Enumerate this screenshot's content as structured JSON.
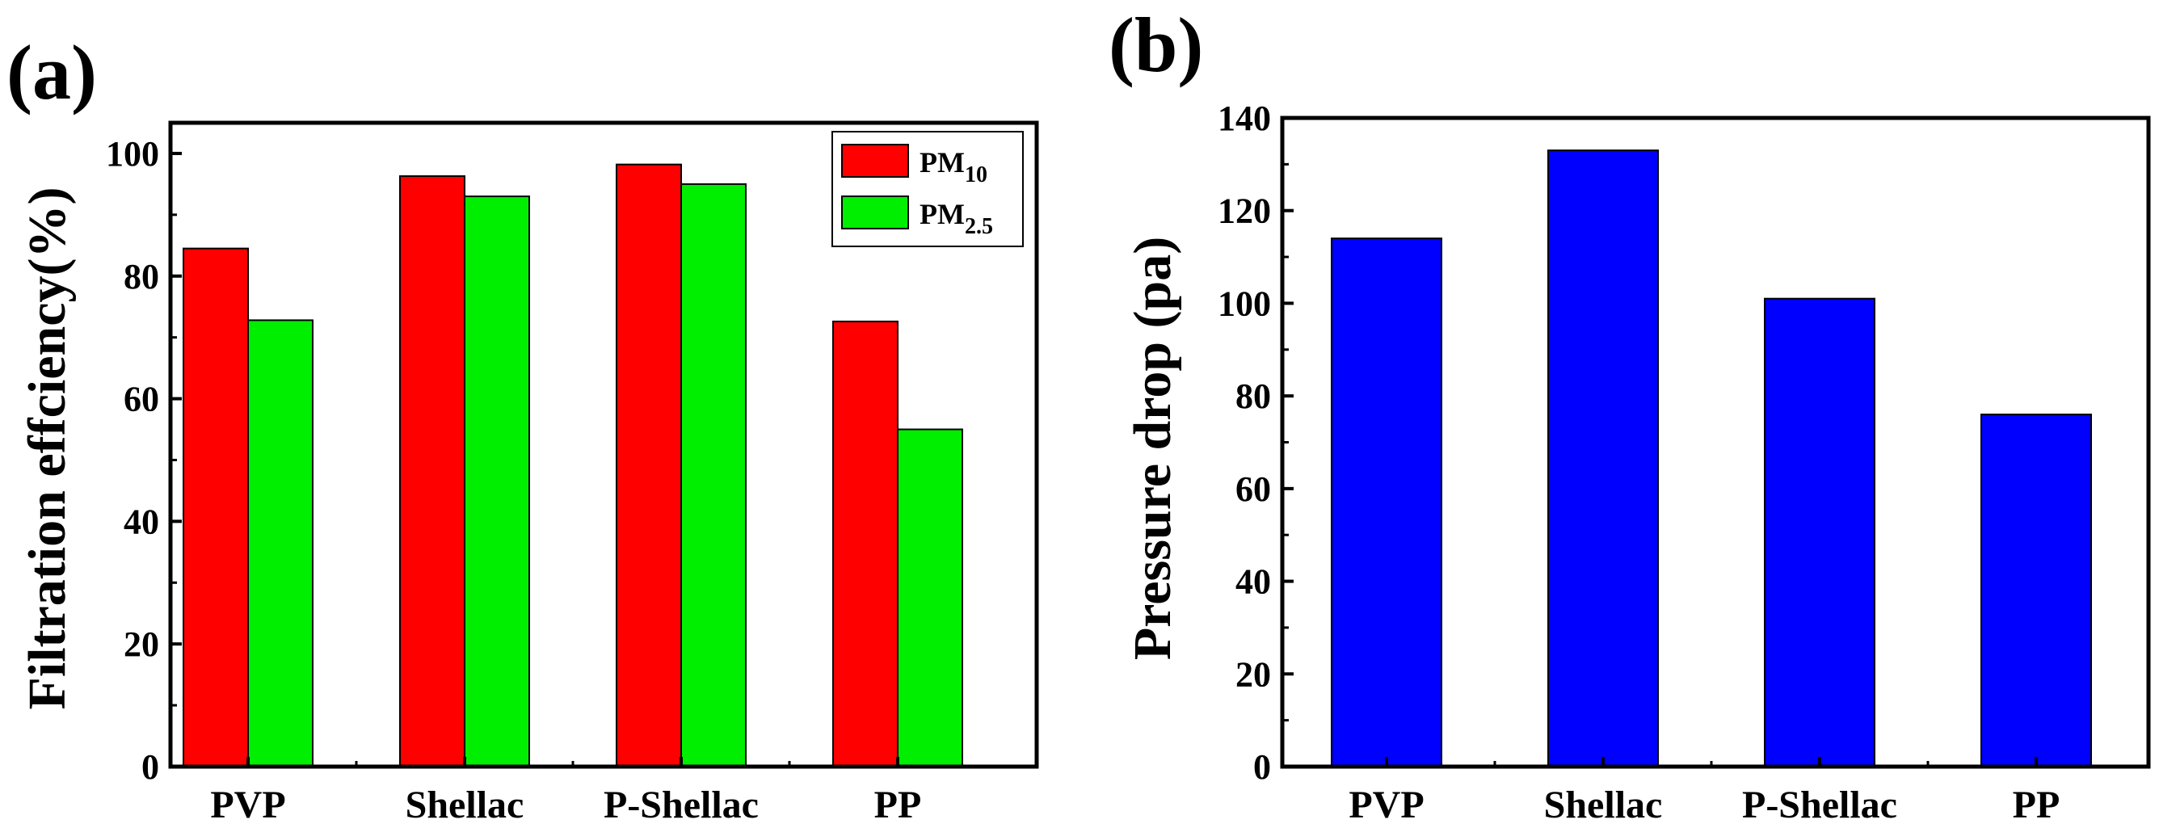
{
  "chart_data": [
    {
      "panel_label": "(a)",
      "type": "bar",
      "ylabel": "Filtration effciency(%)",
      "xlabel": "",
      "categories": [
        "PVP",
        "Shellac",
        "P-Shellac",
        "PP"
      ],
      "series": [
        {
          "name": "PM",
          "subscript": "10",
          "color": "#ff0000",
          "values": [
            84.5,
            96.3,
            98.2,
            72.6
          ]
        },
        {
          "name": "PM",
          "subscript": "2.5",
          "color": "#00ee00",
          "values": [
            72.8,
            93.0,
            95.0,
            55.0
          ]
        }
      ],
      "ylim": [
        0,
        105
      ],
      "yticks": [
        "0",
        "20",
        "40",
        "60",
        "80",
        "100"
      ],
      "ytick_values": [
        0,
        20,
        40,
        60,
        80,
        100
      ],
      "legend": "top-right",
      "grid": false
    },
    {
      "panel_label": "(b)",
      "type": "bar",
      "ylabel": "Pressure drop (pa)",
      "xlabel": "",
      "categories": [
        "PVP",
        "Shellac",
        "P-Shellac",
        "PP"
      ],
      "series": [
        {
          "name": "Pressure drop",
          "color": "#0000ff",
          "values": [
            114,
            133,
            101,
            76
          ]
        }
      ],
      "ylim": [
        0,
        140
      ],
      "yticks": [
        "0",
        "20",
        "40",
        "60",
        "80",
        "100",
        "120",
        "140"
      ],
      "ytick_values": [
        0,
        20,
        40,
        60,
        80,
        100,
        120,
        140
      ],
      "legend": "none",
      "grid": false
    }
  ]
}
